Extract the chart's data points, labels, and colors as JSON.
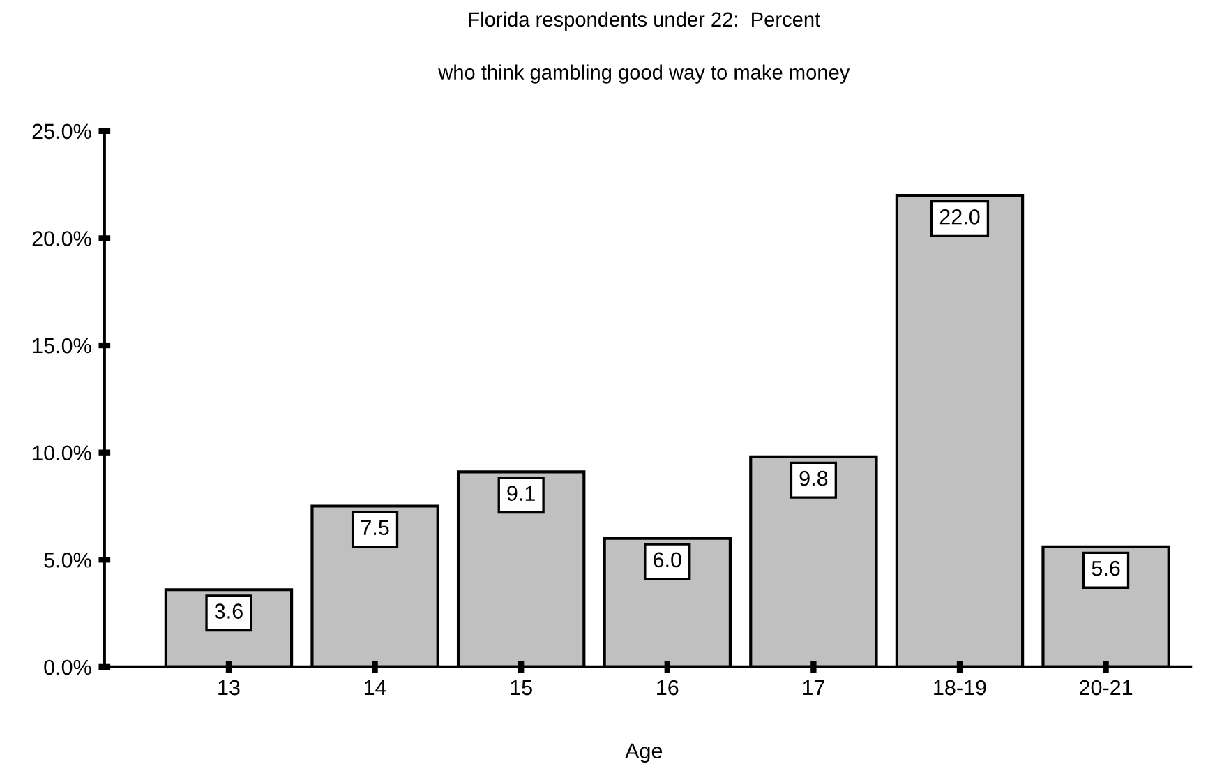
{
  "chart_data": {
    "type": "bar",
    "title": "Florida respondents under 22:  Percent\nwho think gambling good way to make money",
    "xlabel": "Age",
    "categories": [
      "13",
      "14",
      "15",
      "16",
      "17",
      "18-19",
      "20-21"
    ],
    "values": [
      3.6,
      7.5,
      9.1,
      6.0,
      9.8,
      22.0,
      5.6
    ],
    "color": "#c0c0c0",
    "ylim": [
      0,
      25
    ],
    "yticks": [
      {
        "value": 0,
        "label": "0.0%"
      },
      {
        "value": 5,
        "label": "5.0%"
      },
      {
        "value": 10,
        "label": "10.0%"
      },
      {
        "value": 15,
        "label": "15.0%"
      },
      {
        "value": 20,
        "label": "20.0%"
      },
      {
        "value": 25,
        "label": "25.0%"
      }
    ],
    "value_labels": [
      "3.6",
      "7.5",
      "9.1",
      "6.0",
      "9.8",
      "22.0",
      "5.6"
    ],
    "grid": false,
    "legend": false
  }
}
